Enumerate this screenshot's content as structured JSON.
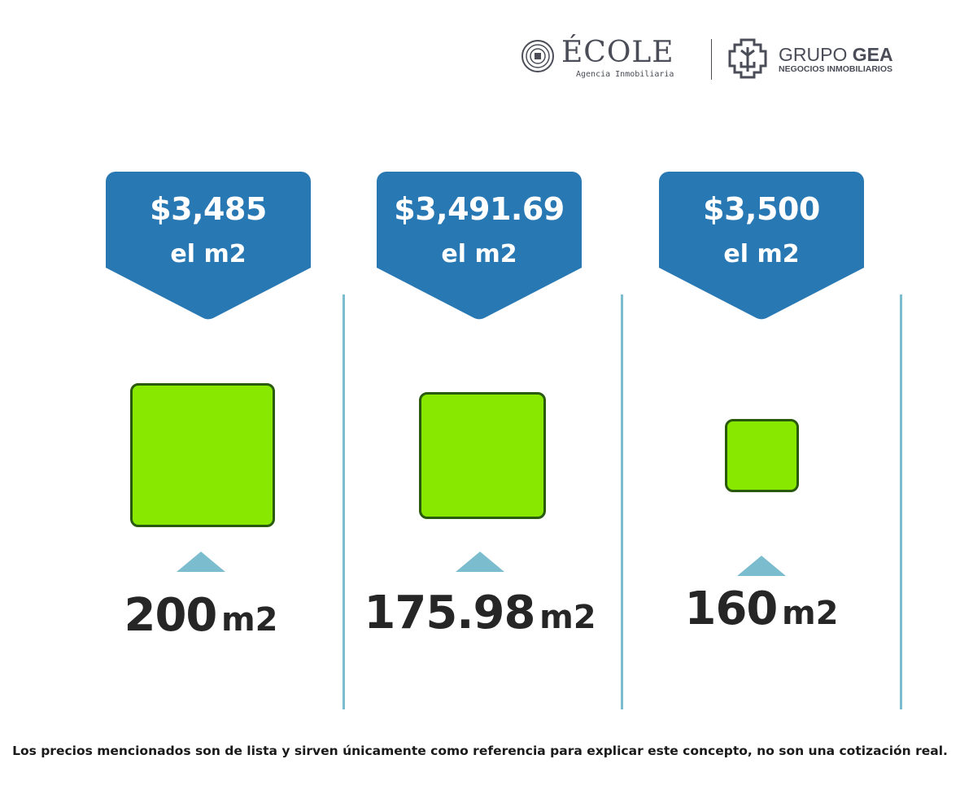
{
  "logos": {
    "ecole": {
      "name": "ÉCOLE",
      "tagline": "Agencia Inmobiliaria"
    },
    "gea": {
      "name_light": "GRUPO ",
      "name_bold": "GEA",
      "tagline": "NEGOCIOS INMOBILIARIOS"
    }
  },
  "colors": {
    "tag": "#2878b4",
    "accent": "#7bbccf",
    "square_fill": "#88e800",
    "square_border": "#2a5a10"
  },
  "options": [
    {
      "price": "$3,485",
      "price_unit": "el m2",
      "area_value": "200",
      "area_unit": "m2"
    },
    {
      "price": "$3,491.69",
      "price_unit": "el m2",
      "area_value": "175.98",
      "area_unit": "m2"
    },
    {
      "price": "$3,500",
      "price_unit": "el m2",
      "area_value": "160",
      "area_unit": "m2"
    }
  ],
  "footer": "Los precios mencionados son de lista y sirven únicamente como referencia para explicar este concepto, no son una cotización real."
}
